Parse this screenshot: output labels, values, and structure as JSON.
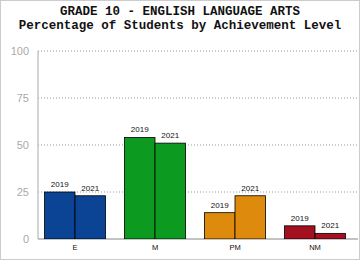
{
  "chart_data": {
    "type": "bar",
    "title": "GRADE 10 - ENGLISH LANGUAGE ARTS",
    "subtitle": "Percentage of Students by Achievement Level",
    "categories": [
      "E",
      "M",
      "PM",
      "NM"
    ],
    "series": [
      {
        "name": "2019",
        "values": [
          25,
          54,
          14,
          7
        ]
      },
      {
        "name": "2021",
        "values": [
          23,
          51,
          23,
          3
        ]
      }
    ],
    "colors": [
      "#0b4494",
      "#0d9a20",
      "#de8a0c",
      "#a3101f"
    ],
    "ylim": [
      0,
      100
    ],
    "yticks": [
      0,
      25,
      50,
      75,
      100
    ],
    "grid": true
  }
}
